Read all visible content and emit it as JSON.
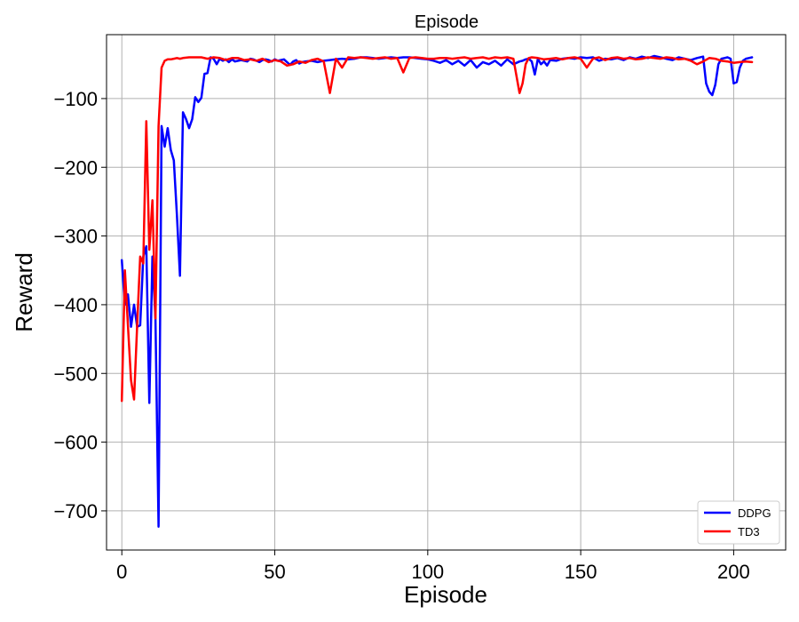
{
  "chart_data": {
    "type": "line",
    "title": "Episode",
    "xlabel": "Episode",
    "ylabel": "Reward",
    "xlim": [
      -5,
      217
    ],
    "ylim": [
      -757,
      -7
    ],
    "xticks": [
      0,
      50,
      100,
      150,
      200
    ],
    "yticks": [
      -700,
      -600,
      -500,
      -400,
      -300,
      -200,
      -100
    ],
    "xtick_labels": [
      "0",
      "50",
      "100",
      "150",
      "200"
    ],
    "ytick_labels": [
      "−700",
      "−600",
      "−500",
      "−400",
      "−300",
      "−200",
      "−100"
    ],
    "grid": true,
    "legend_position": "bottom-right",
    "series": [
      {
        "name": "DDPG",
        "color": "#0000ff",
        "x": [
          0,
          1,
          2,
          3,
          4,
          5,
          6,
          7,
          8,
          9,
          10,
          11,
          12,
          13,
          14,
          15,
          16,
          17,
          18,
          19,
          20,
          21,
          22,
          23,
          24,
          25,
          26,
          27,
          28,
          29,
          30,
          31,
          32,
          33,
          34,
          35,
          36,
          37,
          38,
          39,
          40,
          41,
          42,
          43,
          44,
          45,
          46,
          47,
          48,
          49,
          50,
          51,
          52,
          53,
          54,
          55,
          56,
          57,
          58,
          59,
          60,
          62,
          64,
          66,
          68,
          70,
          72,
          74,
          76,
          78,
          80,
          82,
          84,
          86,
          88,
          90,
          92,
          94,
          96,
          98,
          100,
          102,
          104,
          106,
          108,
          110,
          112,
          114,
          116,
          118,
          120,
          122,
          124,
          126,
          128,
          130,
          131,
          132,
          133,
          134,
          135,
          136,
          137,
          138,
          139,
          140,
          142,
          144,
          146,
          148,
          150,
          152,
          154,
          156,
          158,
          160,
          162,
          164,
          166,
          168,
          170,
          172,
          174,
          176,
          178,
          180,
          182,
          184,
          186,
          188,
          190,
          191,
          192,
          193,
          194,
          195,
          196,
          197,
          198,
          199,
          200,
          201,
          202,
          203,
          204,
          205,
          206
        ],
        "y": [
          -335,
          -400,
          -385,
          -432,
          -400,
          -432,
          -430,
          -330,
          -315,
          -543,
          -330,
          -420,
          -723,
          -140,
          -170,
          -143,
          -175,
          -190,
          -270,
          -358,
          -120,
          -130,
          -143,
          -130,
          -98,
          -105,
          -99,
          -64,
          -63,
          -40,
          -42,
          -50,
          -42,
          -45,
          -43,
          -47,
          -43,
          -46,
          -45,
          -44,
          -45,
          -46,
          -42,
          -43,
          -45,
          -47,
          -44,
          -43,
          -44,
          -46,
          -43,
          -45,
          -44,
          -43,
          -47,
          -51,
          -46,
          -44,
          -49,
          -47,
          -46,
          -45,
          -47,
          -45,
          -44,
          -43,
          -42,
          -43,
          -42,
          -40,
          -40,
          -41,
          -42,
          -41,
          -40,
          -41,
          -40,
          -40,
          -41,
          -42,
          -43,
          -45,
          -48,
          -44,
          -50,
          -45,
          -52,
          -44,
          -55,
          -47,
          -50,
          -45,
          -52,
          -43,
          -50,
          -46,
          -45,
          -43,
          -42,
          -46,
          -65,
          -42,
          -50,
          -46,
          -52,
          -44,
          -45,
          -42,
          -41,
          -42,
          -40,
          -41,
          -40,
          -45,
          -42,
          -43,
          -41,
          -44,
          -40,
          -42,
          -39,
          -41,
          -38,
          -40,
          -42,
          -44,
          -40,
          -42,
          -44,
          -41,
          -39,
          -78,
          -90,
          -95,
          -80,
          -50,
          -42,
          -41,
          -40,
          -42,
          -78,
          -76,
          -55,
          -45,
          -42,
          -41,
          -40
        ]
      },
      {
        "name": "TD3",
        "color": "#ff0000",
        "x": [
          0,
          1,
          2,
          3,
          4,
          5,
          6,
          7,
          8,
          9,
          10,
          11,
          12,
          13,
          14,
          15,
          16,
          17,
          18,
          19,
          20,
          22,
          24,
          26,
          28,
          30,
          32,
          34,
          36,
          38,
          40,
          42,
          44,
          46,
          48,
          50,
          52,
          54,
          56,
          58,
          60,
          62,
          64,
          66,
          68,
          70,
          72,
          74,
          76,
          78,
          80,
          82,
          84,
          86,
          88,
          90,
          92,
          94,
          96,
          98,
          100,
          102,
          104,
          106,
          108,
          110,
          112,
          114,
          116,
          118,
          120,
          122,
          124,
          126,
          128,
          130,
          131,
          132,
          133,
          134,
          136,
          138,
          140,
          142,
          144,
          146,
          148,
          150,
          152,
          154,
          156,
          158,
          160,
          162,
          164,
          166,
          168,
          170,
          172,
          174,
          176,
          178,
          180,
          182,
          184,
          186,
          188,
          190,
          192,
          194,
          196,
          198,
          200,
          202,
          204,
          206
        ],
        "y": [
          -540,
          -350,
          -430,
          -510,
          -538,
          -430,
          -330,
          -340,
          -133,
          -320,
          -248,
          -420,
          -140,
          -55,
          -45,
          -43,
          -43,
          -42,
          -41,
          -42,
          -41,
          -40,
          -40,
          -40,
          -42,
          -40,
          -41,
          -44,
          -41,
          -41,
          -44,
          -43,
          -45,
          -42,
          -47,
          -44,
          -46,
          -52,
          -50,
          -46,
          -48,
          -44,
          -42,
          -46,
          -92,
          -42,
          -55,
          -40,
          -41,
          -40,
          -41,
          -42,
          -41,
          -40,
          -42,
          -41,
          -62,
          -41,
          -40,
          -41,
          -42,
          -42,
          -41,
          -41,
          -42,
          -41,
          -40,
          -42,
          -41,
          -40,
          -42,
          -40,
          -41,
          -40,
          -42,
          -92,
          -78,
          -50,
          -41,
          -40,
          -41,
          -43,
          -42,
          -41,
          -43,
          -41,
          -40,
          -42,
          -55,
          -42,
          -40,
          -44,
          -41,
          -40,
          -42,
          -41,
          -43,
          -42,
          -40,
          -41,
          -42,
          -40,
          -41,
          -43,
          -42,
          -45,
          -50,
          -46,
          -41,
          -42,
          -45,
          -46,
          -48,
          -47,
          -46,
          -47
        ]
      }
    ]
  }
}
